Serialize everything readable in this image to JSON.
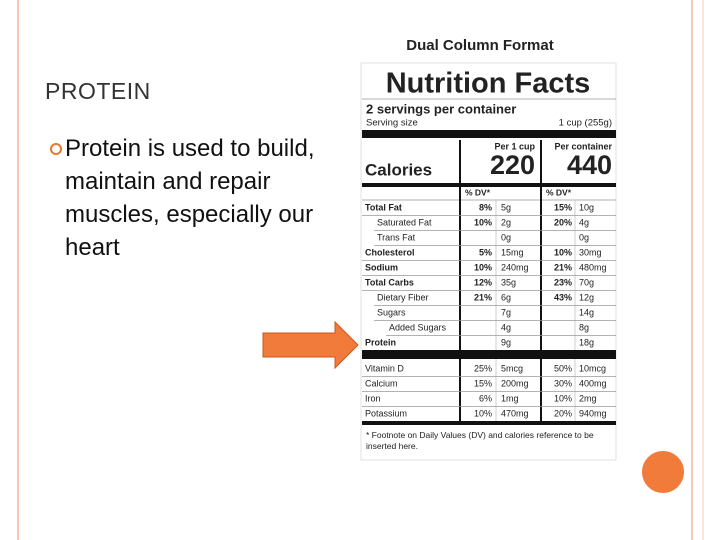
{
  "slide": {
    "title": "PROTEIN",
    "bullet": "Protein is used to build, maintain and repair muscles, especially our heart"
  },
  "label": {
    "heading": "Dual Column Format",
    "title": "Nutrition Facts",
    "servings": "2 servings per container",
    "serving_size_label": "Serving size",
    "serving_size": "1 cup (255g)",
    "col1": "Per 1 cup",
    "col2": "Per container",
    "calories_label": "Calories",
    "calories1": "220",
    "calories2": "440",
    "dv1": "% DV*",
    "dv2": "% DV*",
    "nutrients": [
      {
        "name": "Total Fat",
        "dv1": "8%",
        "amt1": "5g",
        "dv2": "15%",
        "amt2": "10g"
      },
      {
        "name": "Saturated Fat",
        "dv1": "10%",
        "amt1": "2g",
        "dv2": "20%",
        "amt2": "4g"
      },
      {
        "name": "Trans Fat",
        "amt1": "0g",
        "amt2": "0g"
      },
      {
        "name": "Cholesterol",
        "dv1": "5%",
        "amt1": "15mg",
        "dv2": "10%",
        "amt2": "30mg"
      },
      {
        "name": "Sodium",
        "dv1": "10%",
        "amt1": "240mg",
        "dv2": "21%",
        "amt2": "480mg"
      },
      {
        "name": "Total Carbs",
        "dv1": "12%",
        "amt1": "35g",
        "dv2": "23%",
        "amt2": "70g"
      },
      {
        "name": "Dietary Fiber",
        "dv1": "21%",
        "amt1": "6g",
        "dv2": "43%",
        "amt2": "12g"
      },
      {
        "name": "Sugars",
        "amt1": "7g",
        "amt2": "14g"
      },
      {
        "name": "Added Sugars",
        "amt1": "4g",
        "amt2": "8g"
      },
      {
        "name": "Protein",
        "amt1": "9g",
        "amt2": "18g"
      }
    ],
    "vitamins": [
      {
        "name": "Vitamin D",
        "dv1": "25%",
        "amt1": "5mcg",
        "dv2": "50%",
        "amt2": "10mcg"
      },
      {
        "name": "Calcium",
        "dv1": "15%",
        "amt1": "200mg",
        "dv2": "30%",
        "amt2": "400mg"
      },
      {
        "name": "Iron",
        "dv1": "6%",
        "amt1": "1mg",
        "dv2": "10%",
        "amt2": "2mg"
      },
      {
        "name": "Potassium",
        "dv1": "10%",
        "amt1": "470mg",
        "dv2": "20%",
        "amt2": "940mg"
      }
    ],
    "footnote": "* Footnote on Daily Values (DV) and calories reference to be inserted here."
  }
}
